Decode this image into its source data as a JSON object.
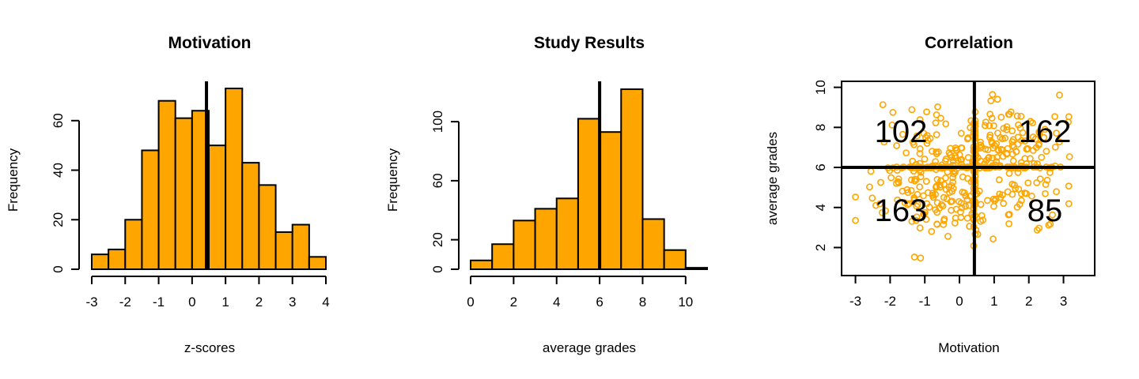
{
  "colors": {
    "bar_fill": "#FFA500",
    "point_stroke": "#FFA500",
    "axis": "#000000",
    "reference_line": "#000000"
  },
  "chart_data": [
    {
      "type": "bar",
      "title": "Motivation",
      "xlabel": "z-scores",
      "ylabel": "Frequency",
      "bin_edges": [
        -3,
        -2.5,
        -2,
        -1.5,
        -1,
        -0.5,
        0,
        0.5,
        1,
        1.5,
        2,
        2.5,
        3,
        3.5,
        4
      ],
      "values": [
        6,
        8,
        20,
        48,
        68,
        61,
        64,
        50,
        73,
        43,
        34,
        15,
        18,
        5
      ],
      "reference_line_x": 0.43,
      "xlim": [
        -3,
        4
      ],
      "ylim": [
        0,
        73
      ],
      "xticks": [
        -3,
        -2,
        -1,
        0,
        1,
        2,
        3,
        4
      ],
      "yticks": [
        0,
        20,
        40,
        60
      ],
      "grid": false,
      "legend": "none"
    },
    {
      "type": "bar",
      "title": "Study Results",
      "xlabel": "average grades",
      "ylabel": "Frequency",
      "bin_edges": [
        0,
        1,
        2,
        3,
        4,
        5,
        6,
        7,
        8,
        9,
        10,
        11
      ],
      "values": [
        6,
        17,
        33,
        41,
        48,
        102,
        93,
        122,
        34,
        13,
        1
      ],
      "reference_line_x": 6,
      "xlim": [
        0,
        11
      ],
      "ylim": [
        0,
        122
      ],
      "xticks": [
        0,
        2,
        4,
        6,
        8,
        10
      ],
      "yticks": [
        0,
        20,
        60,
        100
      ],
      "grid": false,
      "legend": "none"
    },
    {
      "type": "scatter",
      "title": "Correlation",
      "xlabel": "Motivation",
      "ylabel": "average grades",
      "xlim": [
        -3.4,
        3.9
      ],
      "ylim": [
        0.6,
        10.3
      ],
      "xticks": [
        -3,
        -2,
        -1,
        0,
        1,
        2,
        3
      ],
      "yticks": [
        2,
        4,
        6,
        8,
        10
      ],
      "reference_lines": {
        "x": 0.43,
        "y": 6
      },
      "quadrant_counts": {
        "top_left": "102",
        "top_right": "162",
        "bottom_left": "163",
        "bottom_right": "85"
      },
      "marker": "open circle",
      "grid": false,
      "legend": "none"
    }
  ]
}
